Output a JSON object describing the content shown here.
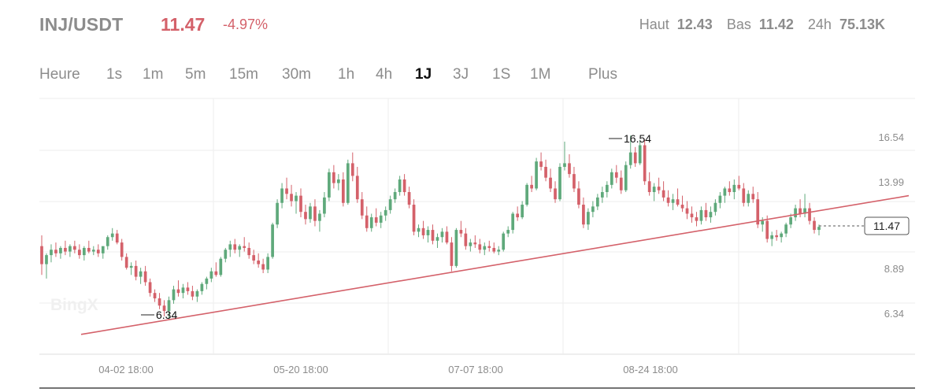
{
  "header": {
    "pair": "INJ/USDT",
    "price": "11.47",
    "change": "-4.97%",
    "stats": [
      {
        "label": "Haut",
        "value": "12.43"
      },
      {
        "label": "Bas",
        "value": "11.42"
      },
      {
        "label": "24h",
        "value": "75.13K"
      }
    ]
  },
  "timeframes": [
    "Heure",
    "1s",
    "1m",
    "5m",
    "15m",
    "30m",
    "1h",
    "4h",
    "1J",
    "3J",
    "1S",
    "1M",
    "Plus"
  ],
  "active_timeframe": "1J",
  "watermark": "BingX",
  "colors": {
    "up": "#5fa97b",
    "down": "#d4616a",
    "trendline": "#d4616a",
    "muted": "#8c8c8c"
  },
  "chart_data": {
    "type": "candlestick",
    "y_ticks": [
      "16.54",
      "13.99",
      "11.47",
      "8.89",
      "6.34"
    ],
    "x_ticks": [
      "04-02 18:00",
      "05-20 18:00",
      "07-07 18:00",
      "08-24 18:00"
    ],
    "high_marker": "16.54",
    "low_marker": "6.34",
    "last_price_label": "11.47",
    "ylim": [
      4.4,
      18.6
    ],
    "trendline": {
      "from": [
        "03-25",
        5.5
      ],
      "to": [
        "10-02",
        13.2
      ]
    },
    "candles": [
      [
        10.4,
        11.0,
        8.8,
        9.4
      ],
      [
        9.4,
        10.0,
        8.6,
        9.9
      ],
      [
        9.9,
        10.5,
        9.5,
        10.2
      ],
      [
        10.2,
        10.6,
        9.8,
        10.0
      ],
      [
        10.0,
        10.4,
        9.7,
        10.3
      ],
      [
        10.3,
        10.7,
        9.9,
        10.1
      ],
      [
        10.1,
        10.5,
        9.8,
        10.4
      ],
      [
        10.4,
        10.7,
        10.0,
        10.2
      ],
      [
        10.2,
        10.5,
        9.7,
        9.9
      ],
      [
        9.9,
        10.4,
        9.6,
        10.3
      ],
      [
        10.3,
        10.7,
        10.0,
        10.1
      ],
      [
        10.1,
        10.4,
        9.9,
        10.2
      ],
      [
        10.2,
        10.5,
        9.8,
        10.0
      ],
      [
        10.0,
        10.3,
        9.7,
        10.4
      ],
      [
        10.4,
        11.0,
        10.2,
        10.9
      ],
      [
        10.9,
        11.4,
        10.7,
        11.1
      ],
      [
        11.1,
        11.3,
        10.5,
        10.6
      ],
      [
        10.6,
        10.8,
        9.6,
        9.8
      ],
      [
        9.8,
        10.0,
        9.1,
        9.2
      ],
      [
        9.2,
        9.5,
        8.8,
        9.3
      ],
      [
        9.3,
        9.6,
        8.5,
        8.7
      ],
      [
        8.7,
        9.2,
        8.3,
        9.0
      ],
      [
        9.0,
        9.3,
        8.2,
        8.4
      ],
      [
        8.4,
        8.6,
        7.6,
        7.8
      ],
      [
        7.8,
        8.0,
        7.3,
        7.5
      ],
      [
        7.5,
        7.8,
        6.9,
        7.1
      ],
      [
        7.1,
        7.4,
        6.5,
        6.8
      ],
      [
        6.8,
        7.6,
        6.34,
        7.4
      ],
      [
        7.4,
        8.2,
        7.2,
        8.0
      ],
      [
        8.0,
        8.5,
        7.6,
        7.8
      ],
      [
        7.8,
        8.3,
        7.5,
        8.1
      ],
      [
        8.1,
        8.4,
        7.7,
        7.9
      ],
      [
        7.9,
        8.2,
        7.4,
        7.6
      ],
      [
        7.6,
        8.0,
        7.3,
        7.9
      ],
      [
        7.9,
        8.4,
        7.7,
        8.3
      ],
      [
        8.3,
        8.7,
        8.0,
        8.6
      ],
      [
        8.6,
        9.2,
        8.4,
        9.0
      ],
      [
        9.0,
        9.5,
        8.7,
        8.8
      ],
      [
        8.8,
        9.8,
        8.7,
        9.7
      ],
      [
        9.7,
        10.3,
        9.5,
        10.2
      ],
      [
        10.2,
        10.7,
        9.8,
        10.5
      ],
      [
        10.5,
        10.8,
        10.0,
        10.2
      ],
      [
        10.2,
        10.5,
        9.8,
        10.4
      ],
      [
        10.4,
        10.9,
        10.1,
        10.3
      ],
      [
        10.3,
        10.6,
        9.7,
        9.9
      ],
      [
        9.9,
        10.2,
        9.4,
        9.6
      ],
      [
        9.6,
        10.0,
        9.2,
        9.4
      ],
      [
        9.4,
        9.7,
        8.9,
        9.1
      ],
      [
        9.1,
        10.0,
        8.9,
        9.8
      ],
      [
        9.8,
        11.7,
        9.7,
        11.6
      ],
      [
        11.6,
        13.0,
        11.4,
        12.8
      ],
      [
        12.8,
        13.9,
        12.5,
        13.6
      ],
      [
        13.6,
        14.2,
        13.0,
        13.3
      ],
      [
        13.3,
        13.8,
        12.6,
        12.9
      ],
      [
        12.9,
        13.4,
        12.2,
        13.2
      ],
      [
        13.2,
        13.6,
        12.0,
        12.3
      ],
      [
        12.3,
        12.7,
        11.6,
        11.9
      ],
      [
        11.9,
        12.8,
        11.7,
        12.6
      ],
      [
        12.6,
        13.0,
        11.5,
        11.8
      ],
      [
        11.8,
        12.4,
        11.2,
        12.2
      ],
      [
        12.2,
        13.4,
        12.0,
        13.1
      ],
      [
        13.1,
        14.7,
        12.9,
        14.5
      ],
      [
        14.5,
        14.9,
        13.6,
        13.9
      ],
      [
        13.9,
        14.4,
        13.5,
        14.1
      ],
      [
        14.1,
        14.5,
        12.6,
        12.8
      ],
      [
        12.8,
        15.2,
        12.7,
        15.0
      ],
      [
        15.0,
        15.6,
        14.0,
        14.3
      ],
      [
        14.3,
        14.8,
        12.8,
        13.0
      ],
      [
        13.0,
        13.4,
        11.9,
        12.1
      ],
      [
        12.1,
        12.6,
        11.2,
        11.4
      ],
      [
        11.4,
        12.2,
        11.2,
        12.0
      ],
      [
        12.0,
        12.5,
        11.5,
        11.7
      ],
      [
        11.7,
        12.3,
        11.4,
        12.1
      ],
      [
        12.1,
        12.6,
        11.8,
        12.4
      ],
      [
        12.4,
        13.2,
        12.2,
        13.0
      ],
      [
        13.0,
        13.6,
        12.8,
        13.4
      ],
      [
        13.4,
        14.3,
        13.2,
        14.1
      ],
      [
        14.1,
        14.4,
        13.2,
        13.4
      ],
      [
        13.4,
        13.7,
        12.5,
        12.7
      ],
      [
        12.7,
        13.0,
        11.0,
        11.2
      ],
      [
        11.2,
        11.6,
        10.9,
        11.4
      ],
      [
        11.4,
        11.8,
        10.8,
        11.0
      ],
      [
        11.0,
        11.5,
        10.6,
        11.3
      ],
      [
        11.3,
        11.6,
        10.5,
        10.7
      ],
      [
        10.7,
        11.1,
        10.3,
        10.9
      ],
      [
        10.9,
        11.4,
        10.6,
        11.2
      ],
      [
        11.2,
        11.5,
        10.5,
        10.6
      ],
      [
        10.6,
        10.9,
        9.0,
        9.3
      ],
      [
        9.3,
        11.4,
        9.2,
        11.3
      ],
      [
        11.3,
        11.8,
        10.9,
        11.1
      ],
      [
        11.1,
        11.4,
        10.2,
        10.4
      ],
      [
        10.4,
        10.8,
        10.1,
        10.6
      ],
      [
        10.6,
        11.0,
        10.3,
        10.5
      ],
      [
        10.5,
        10.8,
        10.0,
        10.2
      ],
      [
        10.2,
        10.6,
        9.9,
        10.4
      ],
      [
        10.4,
        10.7,
        10.1,
        10.3
      ],
      [
        10.3,
        10.6,
        10.0,
        10.1
      ],
      [
        10.1,
        10.4,
        9.9,
        10.2
      ],
      [
        10.2,
        11.2,
        10.1,
        11.1
      ],
      [
        11.1,
        11.5,
        10.9,
        11.3
      ],
      [
        11.3,
        12.3,
        11.1,
        12.2
      ],
      [
        12.2,
        12.6,
        11.8,
        12.0
      ],
      [
        12.0,
        12.9,
        11.9,
        12.7
      ],
      [
        12.7,
        13.9,
        12.6,
        13.8
      ],
      [
        13.8,
        14.3,
        13.4,
        13.6
      ],
      [
        13.6,
        15.3,
        13.5,
        15.1
      ],
      [
        15.1,
        15.6,
        14.6,
        14.8
      ],
      [
        14.8,
        15.2,
        14.0,
        14.2
      ],
      [
        14.2,
        14.7,
        13.4,
        13.6
      ],
      [
        13.6,
        14.0,
        12.8,
        13.0
      ],
      [
        13.0,
        15.0,
        12.9,
        14.8
      ],
      [
        14.8,
        16.2,
        14.6,
        15.0
      ],
      [
        15.0,
        15.5,
        14.2,
        14.4
      ],
      [
        14.4,
        14.8,
        13.4,
        13.6
      ],
      [
        13.6,
        14.0,
        12.5,
        12.7
      ],
      [
        12.7,
        13.1,
        11.4,
        11.6
      ],
      [
        11.6,
        12.5,
        11.3,
        12.3
      ],
      [
        12.3,
        12.9,
        12.0,
        12.6
      ],
      [
        12.6,
        13.3,
        12.4,
        13.1
      ],
      [
        13.1,
        13.7,
        12.8,
        13.4
      ],
      [
        13.4,
        14.0,
        13.1,
        13.8
      ],
      [
        13.8,
        14.7,
        13.6,
        14.5
      ],
      [
        14.5,
        14.9,
        13.9,
        14.2
      ],
      [
        14.2,
        14.6,
        13.3,
        13.5
      ],
      [
        13.5,
        15.1,
        13.4,
        14.9
      ],
      [
        14.9,
        16.54,
        14.7,
        15.6
      ],
      [
        15.6,
        15.9,
        14.8,
        15.0
      ],
      [
        15.0,
        16.3,
        14.9,
        16.0
      ],
      [
        16.0,
        16.3,
        13.8,
        14.0
      ],
      [
        14.0,
        14.5,
        13.2,
        13.4
      ],
      [
        13.4,
        13.9,
        12.9,
        13.7
      ],
      [
        13.7,
        14.2,
        13.3,
        13.5
      ],
      [
        13.5,
        14.0,
        12.9,
        13.1
      ],
      [
        13.1,
        13.5,
        12.6,
        12.8
      ],
      [
        12.8,
        13.3,
        12.4,
        13.0
      ],
      [
        13.0,
        13.6,
        12.6,
        12.7
      ],
      [
        12.7,
        13.2,
        12.3,
        12.5
      ],
      [
        12.5,
        12.9,
        11.9,
        12.2
      ],
      [
        12.2,
        12.6,
        11.7,
        12.0
      ],
      [
        12.0,
        12.3,
        11.5,
        11.8
      ],
      [
        11.8,
        12.6,
        11.6,
        12.4
      ],
      [
        12.4,
        12.8,
        11.8,
        12.0
      ],
      [
        12.0,
        12.6,
        11.7,
        12.3
      ],
      [
        12.3,
        13.0,
        12.1,
        12.8
      ],
      [
        12.8,
        13.4,
        12.5,
        13.2
      ],
      [
        13.2,
        13.7,
        12.8,
        13.6
      ],
      [
        13.6,
        14.0,
        13.2,
        13.4
      ],
      [
        13.4,
        14.1,
        13.0,
        13.8
      ],
      [
        13.8,
        14.3,
        13.5,
        13.6
      ],
      [
        13.6,
        13.9,
        12.6,
        12.8
      ],
      [
        12.8,
        13.5,
        12.6,
        13.3
      ],
      [
        13.3,
        13.7,
        12.8,
        13.0
      ],
      [
        13.0,
        13.4,
        11.4,
        11.6
      ],
      [
        11.6,
        12.0,
        11.2,
        11.8
      ],
      [
        11.8,
        12.1,
        10.6,
        10.8
      ],
      [
        10.8,
        11.2,
        10.4,
        11.0
      ],
      [
        11.0,
        11.3,
        10.7,
        10.9
      ],
      [
        10.9,
        11.2,
        10.6,
        11.1
      ],
      [
        11.1,
        11.7,
        10.9,
        11.6
      ],
      [
        11.6,
        12.2,
        11.4,
        12.0
      ],
      [
        12.0,
        12.7,
        11.8,
        12.5
      ],
      [
        12.5,
        13.0,
        12.0,
        12.2
      ],
      [
        12.2,
        13.3,
        12.0,
        12.5
      ],
      [
        12.5,
        12.8,
        11.6,
        11.8
      ],
      [
        11.8,
        12.0,
        11.1,
        11.3
      ],
      [
        11.3,
        11.6,
        11.0,
        11.47
      ]
    ]
  }
}
